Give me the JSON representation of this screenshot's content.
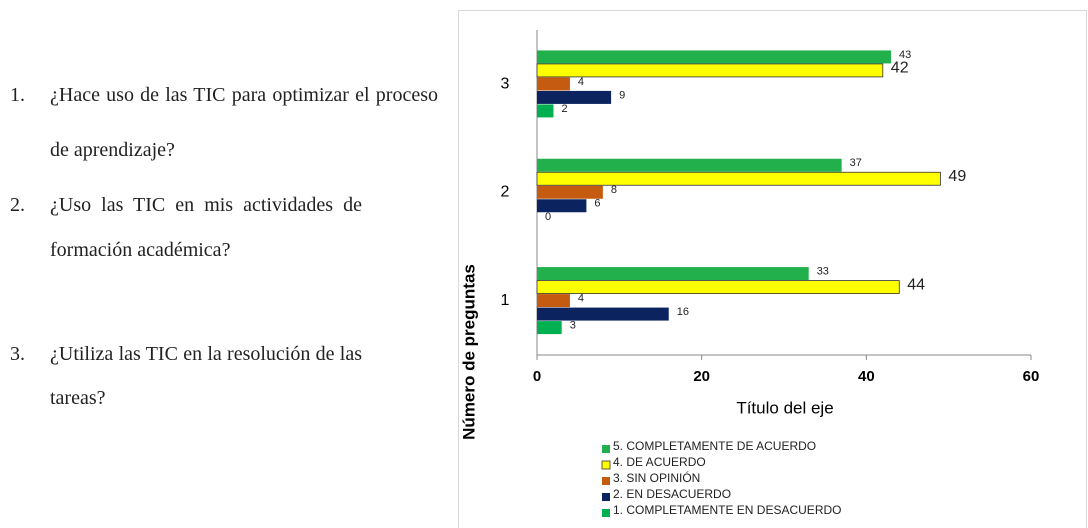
{
  "list": [
    {
      "number": "1.",
      "text": "¿Hace uso de las TIC para optimizar el proceso de aprendizaje?"
    },
    {
      "number": "2.",
      "text": "¿Uso las TIC en mis actividades de formación académica?"
    },
    {
      "number": "3.",
      "text": "¿Utiliza las TIC en la resolución de las tareas?"
    }
  ],
  "chart_data": {
    "type": "bar",
    "orientation": "horizontal",
    "x_label": "Título del eje",
    "y_label": "Número de preguntas",
    "categories": [
      "1",
      "2",
      "3"
    ],
    "series": [
      {
        "name": "5. COMPLETAMENTE  DE ACUERDO",
        "color": "#21b04b",
        "values": [
          33,
          37,
          43
        ]
      },
      {
        "name": "4. DE ACUERDO",
        "color": "#ffff00",
        "values": [
          44,
          49,
          42
        ]
      },
      {
        "name": "3. SIN OPINIÓN",
        "color": "#c55a11",
        "values": [
          4,
          8,
          4
        ]
      },
      {
        "name": "2. EN DESACUERDO",
        "color": "#0b2460",
        "values": [
          16,
          6,
          9
        ]
      },
      {
        "name": "1. COMPLETAMENTE  EN DESACUERDO",
        "color": "#00b050",
        "values": [
          3,
          0,
          2
        ]
      }
    ],
    "xlim": [
      0,
      60
    ],
    "xticks": [
      0,
      20,
      40,
      60
    ],
    "grid": false,
    "legend": "bottom"
  }
}
